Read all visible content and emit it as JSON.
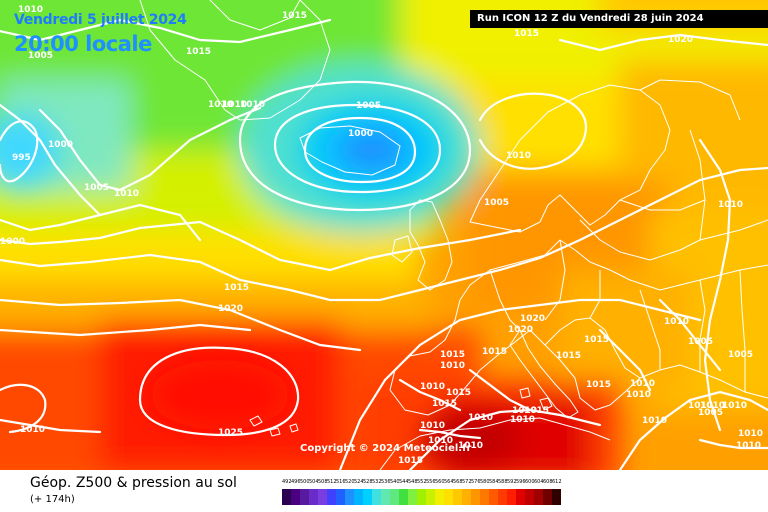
{
  "header": {
    "date": "Vendredi 5 juillet 2024",
    "time": "20:00 locale",
    "run": "Run ICON 12 Z du Vendredi 28 juin 2024"
  },
  "copyright": "Copyright © 2024 Meteociel.fr",
  "legend": {
    "title": "Géop. Z500 & pression au sol",
    "subtitle": "(+ 174h)",
    "scale_values": [
      "492",
      "496",
      "500",
      "504",
      "508",
      "512",
      "516",
      "520",
      "524",
      "528",
      "532",
      "536",
      "540",
      "544",
      "548",
      "552",
      "556",
      "560",
      "564",
      "568",
      "572",
      "576",
      "580",
      "584",
      "588",
      "592",
      "596",
      "600",
      "604",
      "608",
      "612"
    ],
    "scale_colors": [
      "#2a0050",
      "#4b0082",
      "#5a1aa0",
      "#6a2cc8",
      "#7a3ee0",
      "#4040ff",
      "#2060ff",
      "#1e90ff",
      "#00b4ff",
      "#00d0ff",
      "#40e0e0",
      "#60e8b0",
      "#60e880",
      "#40e040",
      "#80f040",
      "#a0f000",
      "#c8f000",
      "#f0f000",
      "#ffe000",
      "#ffc800",
      "#ffb000",
      "#ff9600",
      "#ff7800",
      "#ff5a00",
      "#ff3c00",
      "#ff1e00",
      "#e00000",
      "#c00000",
      "#a00000",
      "#700000",
      "#300000"
    ]
  },
  "map": {
    "isobars": [
      {
        "label": "1010"
      },
      {
        "label": "1015"
      },
      {
        "label": "1015"
      },
      {
        "label": "1015"
      },
      {
        "label": "1020"
      },
      {
        "label": "1005"
      },
      {
        "label": "1010"
      },
      {
        "label": "1010"
      },
      {
        "label": "1010"
      },
      {
        "label": "1005"
      },
      {
        "label": "1000"
      },
      {
        "label": "995"
      },
      {
        "label": "1000"
      },
      {
        "label": "1005"
      },
      {
        "label": "1010"
      },
      {
        "label": "1010"
      },
      {
        "label": "1005"
      },
      {
        "label": "1010"
      },
      {
        "label": "1000"
      },
      {
        "label": "1015"
      },
      {
        "label": "1020"
      },
      {
        "label": "1025"
      },
      {
        "label": "1010"
      },
      {
        "label": "1020"
      },
      {
        "label": "1020"
      },
      {
        "label": "1015"
      },
      {
        "label": "1015"
      },
      {
        "label": "1015"
      },
      {
        "label": "1015"
      },
      {
        "label": "1010"
      },
      {
        "label": "1005"
      },
      {
        "label": "1005"
      },
      {
        "label": "1010"
      },
      {
        "label": "1010"
      },
      {
        "label": "1015"
      },
      {
        "label": "1015"
      },
      {
        "label": "1010"
      },
      {
        "label": "1015"
      },
      {
        "label": "1010"
      },
      {
        "label": "1010"
      },
      {
        "label": "1010"
      },
      {
        "label": "1010"
      },
      {
        "label": "1015"
      },
      {
        "label": "1010"
      },
      {
        "label": "1010"
      },
      {
        "label": "1010"
      },
      {
        "label": "1005"
      },
      {
        "label": "1010"
      },
      {
        "label": "1010"
      },
      {
        "label": "1010"
      },
      {
        "label": "1010"
      },
      {
        "label": "1010"
      },
      {
        "label": "1010"
      },
      {
        "label": "1015"
      }
    ]
  }
}
